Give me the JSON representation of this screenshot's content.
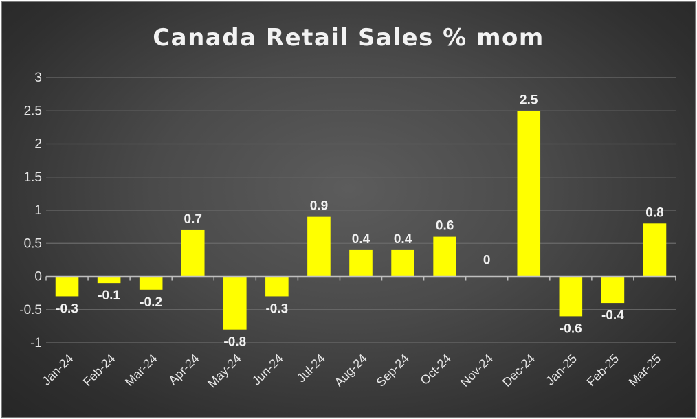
{
  "chart_data": {
    "type": "bar",
    "title": "Canada Retail Sales % mom",
    "categories": [
      "Jan-24",
      "Feb-24",
      "Mar-24",
      "Apr-24",
      "May-24",
      "Jun-24",
      "Jul-24",
      "Aug-24",
      "Sep-24",
      "Oct-24",
      "Nov-24",
      "Dec-24",
      "Jan-25",
      "Feb-25",
      "Mar-25"
    ],
    "values": [
      -0.3,
      -0.1,
      -0.2,
      0.7,
      -0.8,
      -0.3,
      0.9,
      0.4,
      0.4,
      0.6,
      0,
      2.5,
      -0.6,
      -0.4,
      0.8
    ],
    "data_labels": [
      "-0.3",
      "-0.1",
      "-0.2",
      "0.7",
      "-0.8",
      "-0.3",
      "0.9",
      "0.4",
      "0.4",
      "0.6",
      "0",
      "2.5",
      "-0.6",
      "-0.4",
      "0.8"
    ],
    "ylim": [
      -1,
      3
    ],
    "yticks": [
      "-1",
      "-0.5",
      "0",
      "0.5",
      "1",
      "1.5",
      "2",
      "2.5",
      "3"
    ],
    "ytick_values": [
      -1,
      -0.5,
      0,
      0.5,
      1,
      1.5,
      2,
      2.5,
      3
    ],
    "xlabel": "",
    "ylabel": "",
    "grid": true,
    "legend": "none",
    "colors": {
      "bar": "#ffff00",
      "grid": "#6a6a6a",
      "axis": "#bfbfbf",
      "text": "#e6e6e6"
    }
  }
}
